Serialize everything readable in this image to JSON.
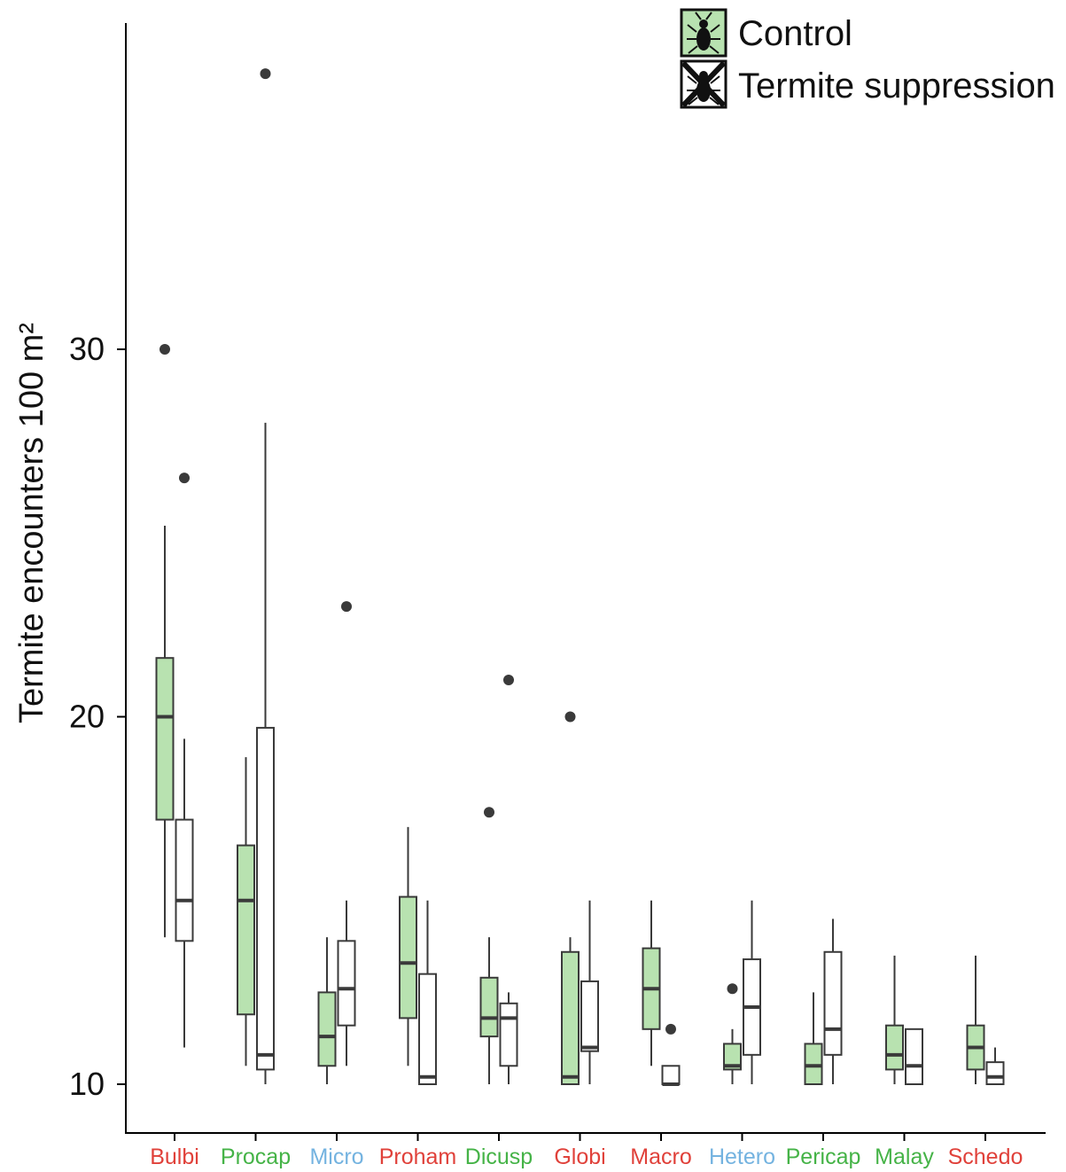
{
  "chart_data": {
    "type": "box",
    "ylabel": "Termite encounters 100 m²",
    "xlabel": "",
    "ylim": [
      9.0,
      38.5
    ],
    "yticks": [
      10,
      20,
      30
    ],
    "legend": {
      "placement": "top-right",
      "entries": [
        {
          "name": "Control",
          "fill": "#b8e2b0",
          "icon": "termite-icon"
        },
        {
          "name": "Termite suppression",
          "fill": "#ffffff",
          "icon": "termite-crossed-icon"
        }
      ]
    },
    "colors": {
      "red": "#e0413a",
      "green": "#45b347",
      "blue": "#74b3e0",
      "box_stroke": "#3a3a3a",
      "axis": "#000000"
    },
    "categories": [
      {
        "name": "Bulbi",
        "color": "#e0413a",
        "control": {
          "min": 14.0,
          "q1": 17.2,
          "median": 20.0,
          "q3": 21.6,
          "max": 25.2,
          "outliers": [
            30.0
          ]
        },
        "suppression": {
          "min": 11.0,
          "q1": 13.9,
          "median": 15.0,
          "q3": 17.2,
          "max": 19.4,
          "outliers": [
            26.5
          ]
        }
      },
      {
        "name": "Procap",
        "color": "#45b347",
        "control": {
          "min": 10.5,
          "q1": 11.9,
          "median": 15.0,
          "q3": 16.5,
          "max": 18.9,
          "outliers": []
        },
        "suppression": {
          "min": 10.0,
          "q1": 10.4,
          "median": 10.8,
          "q3": 19.7,
          "max": 28.0,
          "outliers": [
            37.5
          ]
        }
      },
      {
        "name": "Micro",
        "color": "#74b3e0",
        "control": {
          "min": 10.0,
          "q1": 10.5,
          "median": 11.3,
          "q3": 12.5,
          "max": 14.0,
          "outliers": []
        },
        "suppression": {
          "min": 10.5,
          "q1": 11.6,
          "median": 12.6,
          "q3": 13.9,
          "max": 15.0,
          "outliers": [
            23.0
          ]
        }
      },
      {
        "name": "Proham",
        "color": "#e0413a",
        "control": {
          "min": 10.5,
          "q1": 11.8,
          "median": 13.3,
          "q3": 15.1,
          "max": 17.0,
          "outliers": []
        },
        "suppression": {
          "min": 10.0,
          "q1": 10.0,
          "median": 10.2,
          "q3": 13.0,
          "max": 15.0,
          "outliers": []
        }
      },
      {
        "name": "Dicusp",
        "color": "#45b347",
        "control": {
          "min": 10.0,
          "q1": 11.3,
          "median": 11.8,
          "q3": 12.9,
          "max": 14.0,
          "outliers": [
            17.4
          ]
        },
        "suppression": {
          "min": 10.0,
          "q1": 10.5,
          "median": 11.8,
          "q3": 12.2,
          "max": 12.5,
          "outliers": [
            21.0
          ]
        }
      },
      {
        "name": "Globi",
        "color": "#e0413a",
        "control": {
          "min": 10.0,
          "q1": 10.0,
          "median": 10.2,
          "q3": 13.6,
          "max": 14.0,
          "outliers": [
            20.0
          ]
        },
        "suppression": {
          "min": 10.0,
          "q1": 10.9,
          "median": 11.0,
          "q3": 12.8,
          "max": 15.0,
          "outliers": []
        }
      },
      {
        "name": "Macro",
        "color": "#e0413a",
        "control": {
          "min": 10.5,
          "q1": 11.5,
          "median": 12.6,
          "q3": 13.7,
          "max": 15.0,
          "outliers": []
        },
        "suppression": {
          "min": 10.0,
          "q1": 10.0,
          "median": 10.0,
          "q3": 10.5,
          "max": 10.5,
          "outliers": [
            11.5
          ]
        }
      },
      {
        "name": "Hetero",
        "color": "#74b3e0",
        "control": {
          "min": 10.0,
          "q1": 10.4,
          "median": 10.5,
          "q3": 11.1,
          "max": 11.5,
          "outliers": [
            12.6
          ]
        },
        "suppression": {
          "min": 10.0,
          "q1": 10.8,
          "median": 12.1,
          "q3": 13.4,
          "max": 15.0,
          "outliers": []
        }
      },
      {
        "name": "Pericap",
        "color": "#45b347",
        "control": {
          "min": 10.0,
          "q1": 10.0,
          "median": 10.5,
          "q3": 11.1,
          "max": 12.5,
          "outliers": []
        },
        "suppression": {
          "min": 10.0,
          "q1": 10.8,
          "median": 11.5,
          "q3": 13.6,
          "max": 14.5,
          "outliers": []
        }
      },
      {
        "name": "Malay",
        "color": "#45b347",
        "control": {
          "min": 10.0,
          "q1": 10.4,
          "median": 10.8,
          "q3": 11.6,
          "max": 13.5,
          "outliers": []
        },
        "suppression": {
          "min": 10.0,
          "q1": 10.0,
          "median": 10.5,
          "q3": 11.5,
          "max": 11.5,
          "outliers": []
        }
      },
      {
        "name": "Schedo",
        "color": "#e0413a",
        "control": {
          "min": 10.0,
          "q1": 10.4,
          "median": 11.0,
          "q3": 11.6,
          "max": 13.5,
          "outliers": []
        },
        "suppression": {
          "min": 10.0,
          "q1": 10.0,
          "median": 10.2,
          "q3": 10.6,
          "max": 11.0,
          "outliers": []
        }
      }
    ]
  }
}
